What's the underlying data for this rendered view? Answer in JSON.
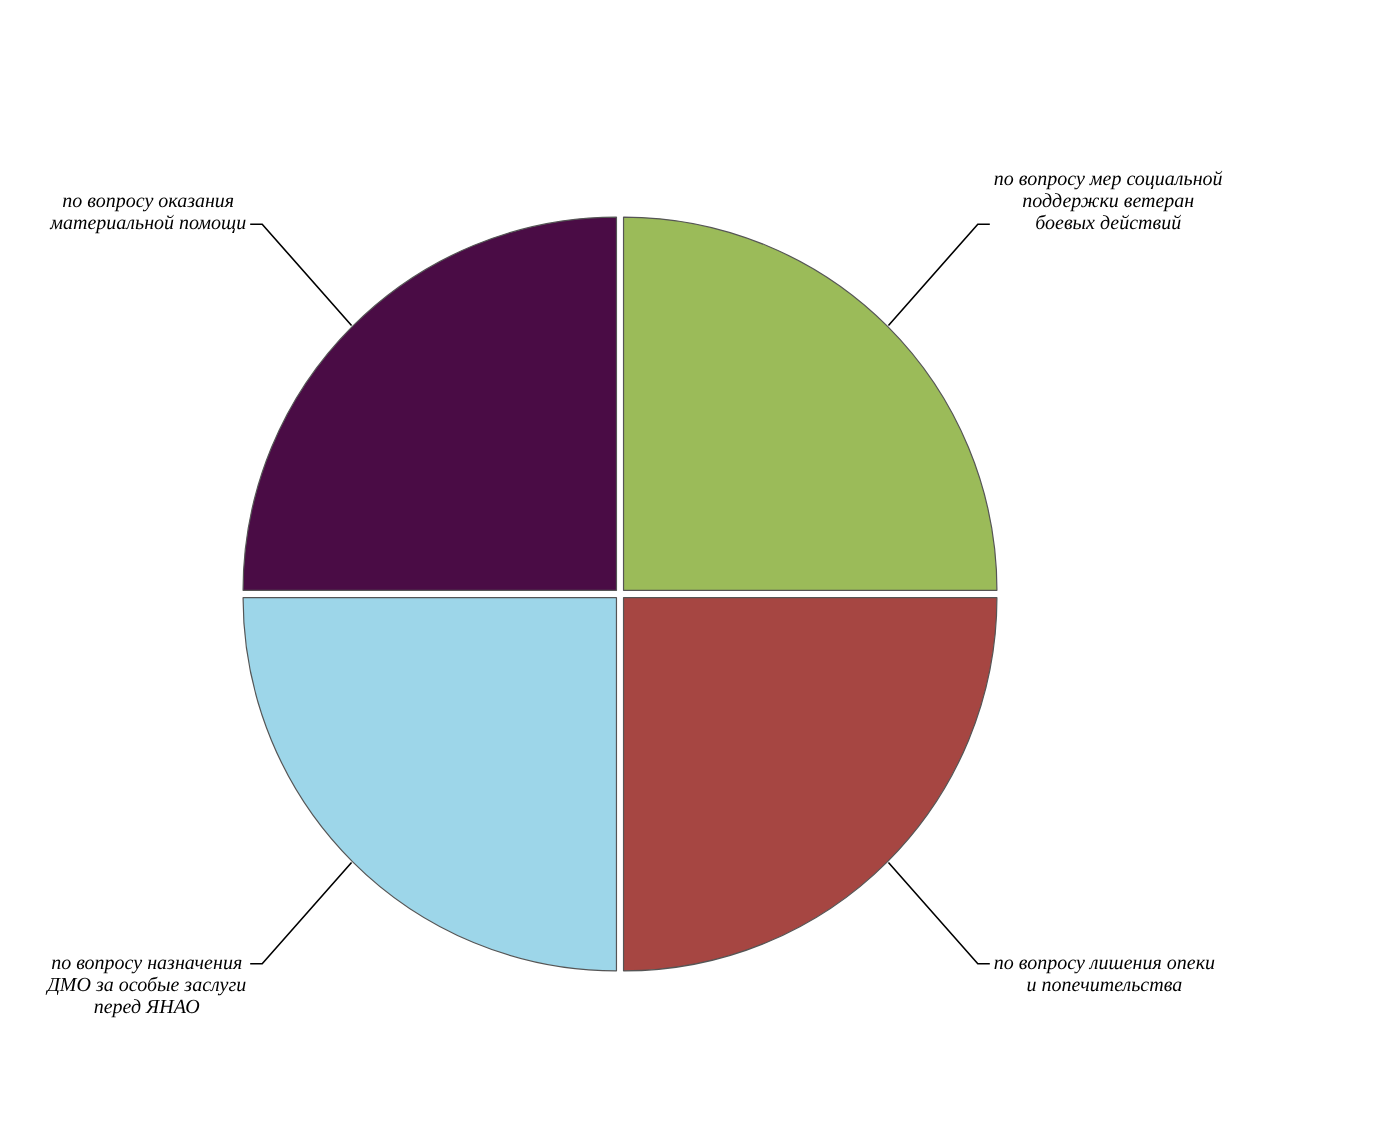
{
  "chart_data": {
    "type": "pie",
    "categories": [
      "по вопросу мер социальной\nподдержки ветеран\nбоевых действий",
      "по вопросу лишения опеки\nи попечительства",
      "по вопросу назначения\nДМО за особые заслуги\nперед ЯНАО",
      "по вопросу оказания\nматериальной помощи"
    ],
    "values": [
      25,
      25,
      25,
      25
    ],
    "colors": [
      "#9bbb59",
      "#a64642",
      "#9dd6e9",
      "#4a0c45"
    ],
    "legend": false
  }
}
